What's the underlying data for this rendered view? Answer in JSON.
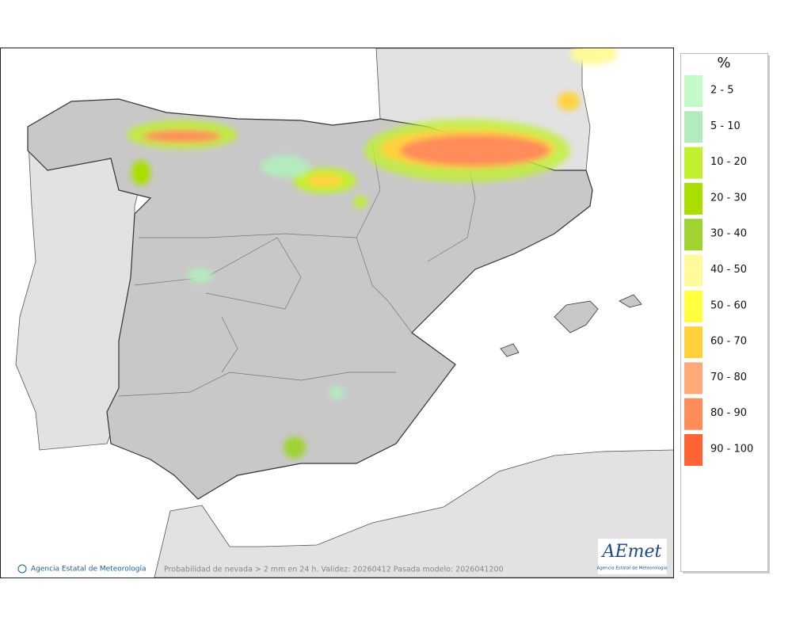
{
  "map": {
    "footer_credit": "Agencia Estatal de Meteorología",
    "footer_caption": "Probabilidad de nevada > 2 mm en 24 h. Validez: 20260412 Pasada modelo: 2026041200",
    "logo": {
      "name": "AEmet",
      "subtitle": "Agencia Estatal de Meteorología"
    },
    "legend": {
      "title": "%",
      "items": [
        {
          "label": "2 - 5",
          "color": "#c3fac8"
        },
        {
          "label": "5 - 10",
          "color": "#b4ebbe"
        },
        {
          "label": "10 - 20",
          "color": "#c0f030"
        },
        {
          "label": "20 - 30",
          "color": "#aade00"
        },
        {
          "label": "30 - 40",
          "color": "#a0d232"
        },
        {
          "label": "40 - 50",
          "color": "#fffa9a"
        },
        {
          "label": "50 - 60",
          "color": "#ffff40"
        },
        {
          "label": "60 - 70",
          "color": "#ffd23c"
        },
        {
          "label": "70 - 80",
          "color": "#ffaa78"
        },
        {
          "label": "80 - 90",
          "color": "#ff8c5a"
        },
        {
          "label": "90 - 100",
          "color": "#ff6432"
        }
      ]
    }
  }
}
